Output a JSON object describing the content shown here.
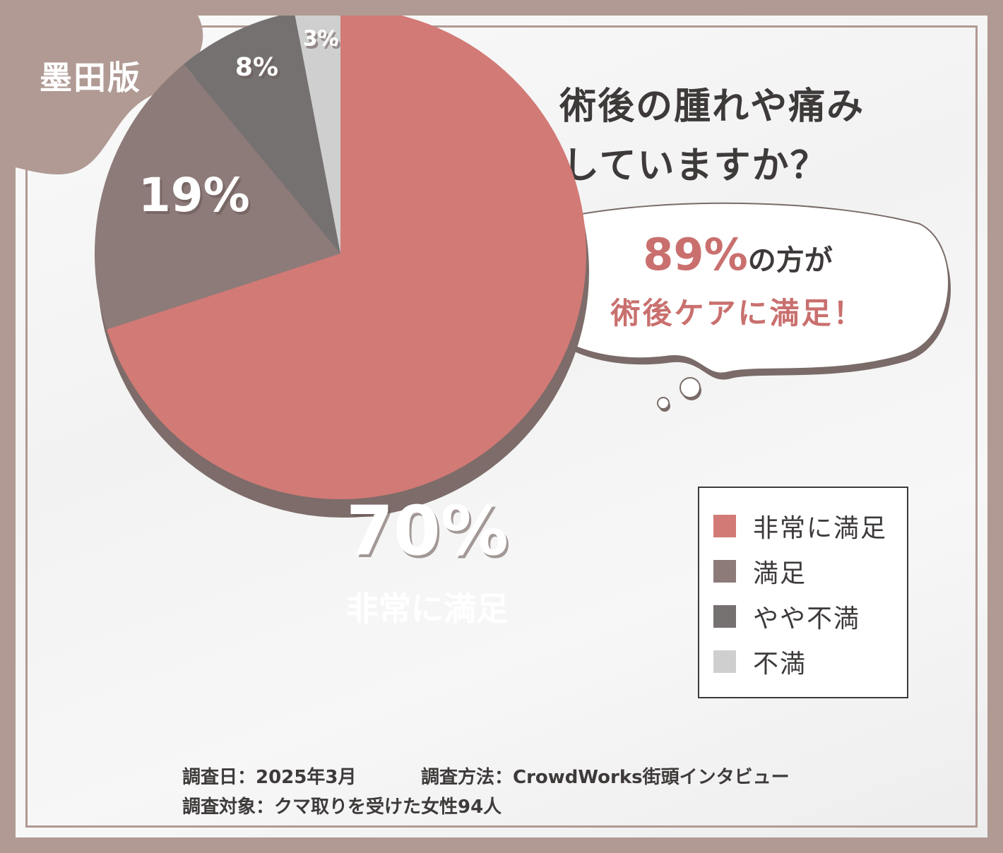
{
  "badge": "墨田版",
  "title_line1": "Q. クマ取り施術後、術後の腫れや痛み",
  "title_line2": "のケア方法に満足していますか？",
  "bubble": {
    "percent": "89%",
    "line1_suffix": "の方が",
    "line2": "術後ケアに満足！"
  },
  "center_label": "非常に満足",
  "colors": {
    "very_satisfied": "#d27a76",
    "satisfied": "#8d7b79",
    "somewhat_dissatisfied": "#757171",
    "dissatisfied": "#cfcfcf",
    "frame": "#b09a93"
  },
  "chart_data": {
    "type": "pie",
    "slices": [
      {
        "name": "非常に満足",
        "value": 70,
        "label": "70%"
      },
      {
        "name": "満足",
        "value": 19,
        "label": "19%"
      },
      {
        "name": "やや不満",
        "value": 8,
        "label": "8%"
      },
      {
        "name": "不満",
        "value": 3,
        "label": "3%"
      }
    ],
    "legend_placement": "right"
  },
  "legend": [
    "非常に満足",
    "満足",
    "やや不満",
    "不満"
  ],
  "footer": {
    "date": "調査日：2025年3月",
    "method": "調査方法：CrowdWorks街頭インタビュー",
    "target": "調査対象：クマ取りを受けた女性94人"
  }
}
